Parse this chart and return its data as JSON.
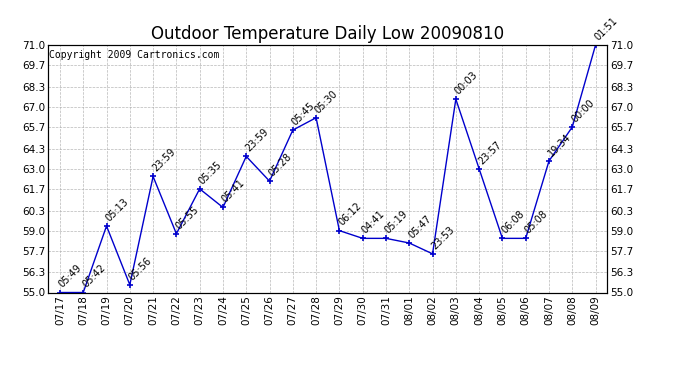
{
  "title": "Outdoor Temperature Daily Low 20090810",
  "copyright": "Copyright 2009 Cartronics.com",
  "x_labels": [
    "07/17",
    "07/18",
    "07/19",
    "07/20",
    "07/21",
    "07/22",
    "07/23",
    "07/24",
    "07/25",
    "07/26",
    "07/27",
    "07/28",
    "07/29",
    "07/30",
    "07/31",
    "08/01",
    "08/02",
    "08/03",
    "08/04",
    "08/05",
    "08/06",
    "08/07",
    "08/08",
    "08/09"
  ],
  "y_values": [
    55.0,
    55.0,
    59.3,
    55.5,
    62.5,
    58.8,
    61.7,
    60.5,
    63.8,
    62.2,
    65.5,
    66.3,
    59.0,
    58.5,
    58.5,
    58.2,
    57.5,
    67.5,
    63.0,
    58.5,
    58.5,
    63.5,
    65.7,
    71.0
  ],
  "point_labels": [
    "05:49",
    "05:42",
    "05:13",
    "05:56",
    "23:59",
    "05:55",
    "05:35",
    "05:41",
    "23:59",
    "05:28",
    "05:45",
    "05:30",
    "06:12",
    "04:41",
    "05:19",
    "05:47",
    "23:53",
    "00:03",
    "23:57",
    "06:08",
    "05:08",
    "19:34",
    "00:00",
    "01:51"
  ],
  "line_color": "#0000cc",
  "marker_color": "#0000cc",
  "background_color": "#ffffff",
  "grid_color": "#b0b0b0",
  "ylim": [
    55.0,
    71.0
  ],
  "yticks": [
    55.0,
    56.3,
    57.7,
    59.0,
    60.3,
    61.7,
    63.0,
    64.3,
    65.7,
    67.0,
    68.3,
    69.7,
    71.0
  ],
  "title_fontsize": 12,
  "label_fontsize": 7,
  "tick_fontsize": 7.5,
  "copyright_fontsize": 7
}
